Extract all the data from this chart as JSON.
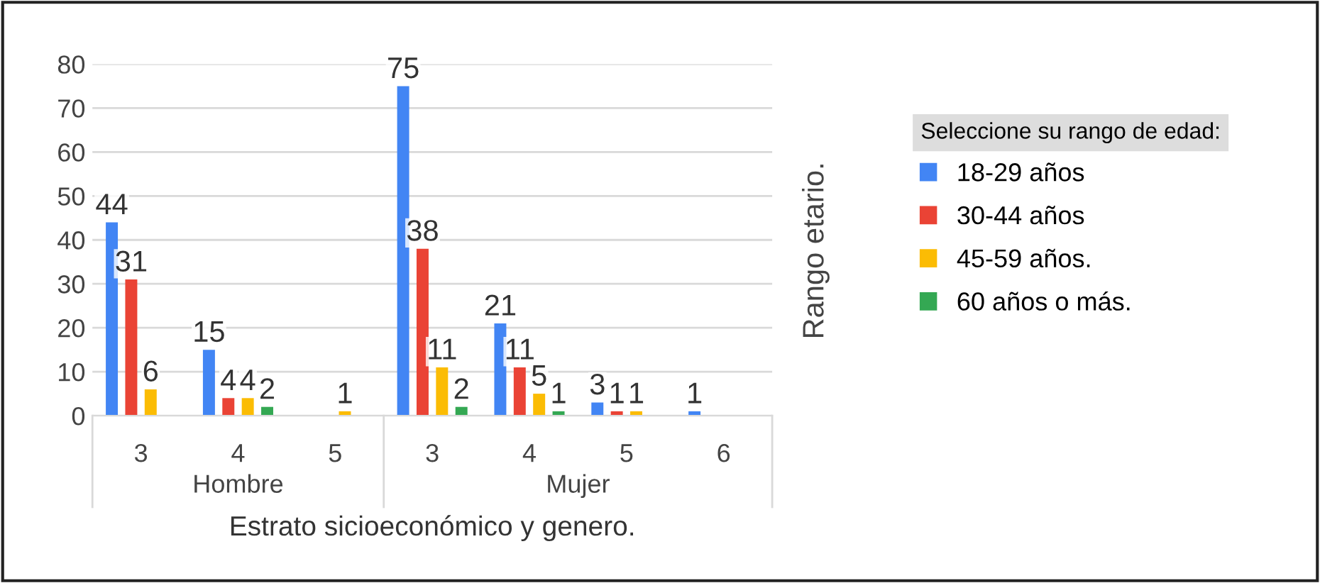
{
  "chart_data": {
    "type": "bar",
    "xlabel": "Estrato sicioeconómico y genero.",
    "legend_title": "Seleccione su rango de edad:",
    "annotations": [
      "Hombre",
      "Mujer",
      "Rango etario."
    ],
    "categories": [
      "3",
      "4",
      "5",
      "3",
      "4",
      "5",
      "6"
    ],
    "series": [
      {
        "name": "18-29 años",
        "color": "#4285f4",
        "values": [
          44,
          15,
          null,
          75,
          21,
          3,
          1
        ]
      },
      {
        "name": "30-44 años",
        "color": "#ea4335",
        "values": [
          31,
          4,
          null,
          38,
          11,
          1,
          null
        ]
      },
      {
        "name": "45-59 años.",
        "color": "#fbbc04",
        "values": [
          6,
          4,
          1,
          11,
          5,
          1,
          null
        ]
      },
      {
        "name": "60 años o más.",
        "color": "#34a853",
        "values": [
          null,
          2,
          null,
          2,
          1,
          null,
          null
        ]
      }
    ],
    "ylim": [
      0,
      80
    ],
    "yticks": [
      0,
      10,
      20,
      30,
      40,
      50,
      60,
      70,
      80
    ],
    "grid": "y",
    "data_labels": true,
    "legend": "right"
  }
}
